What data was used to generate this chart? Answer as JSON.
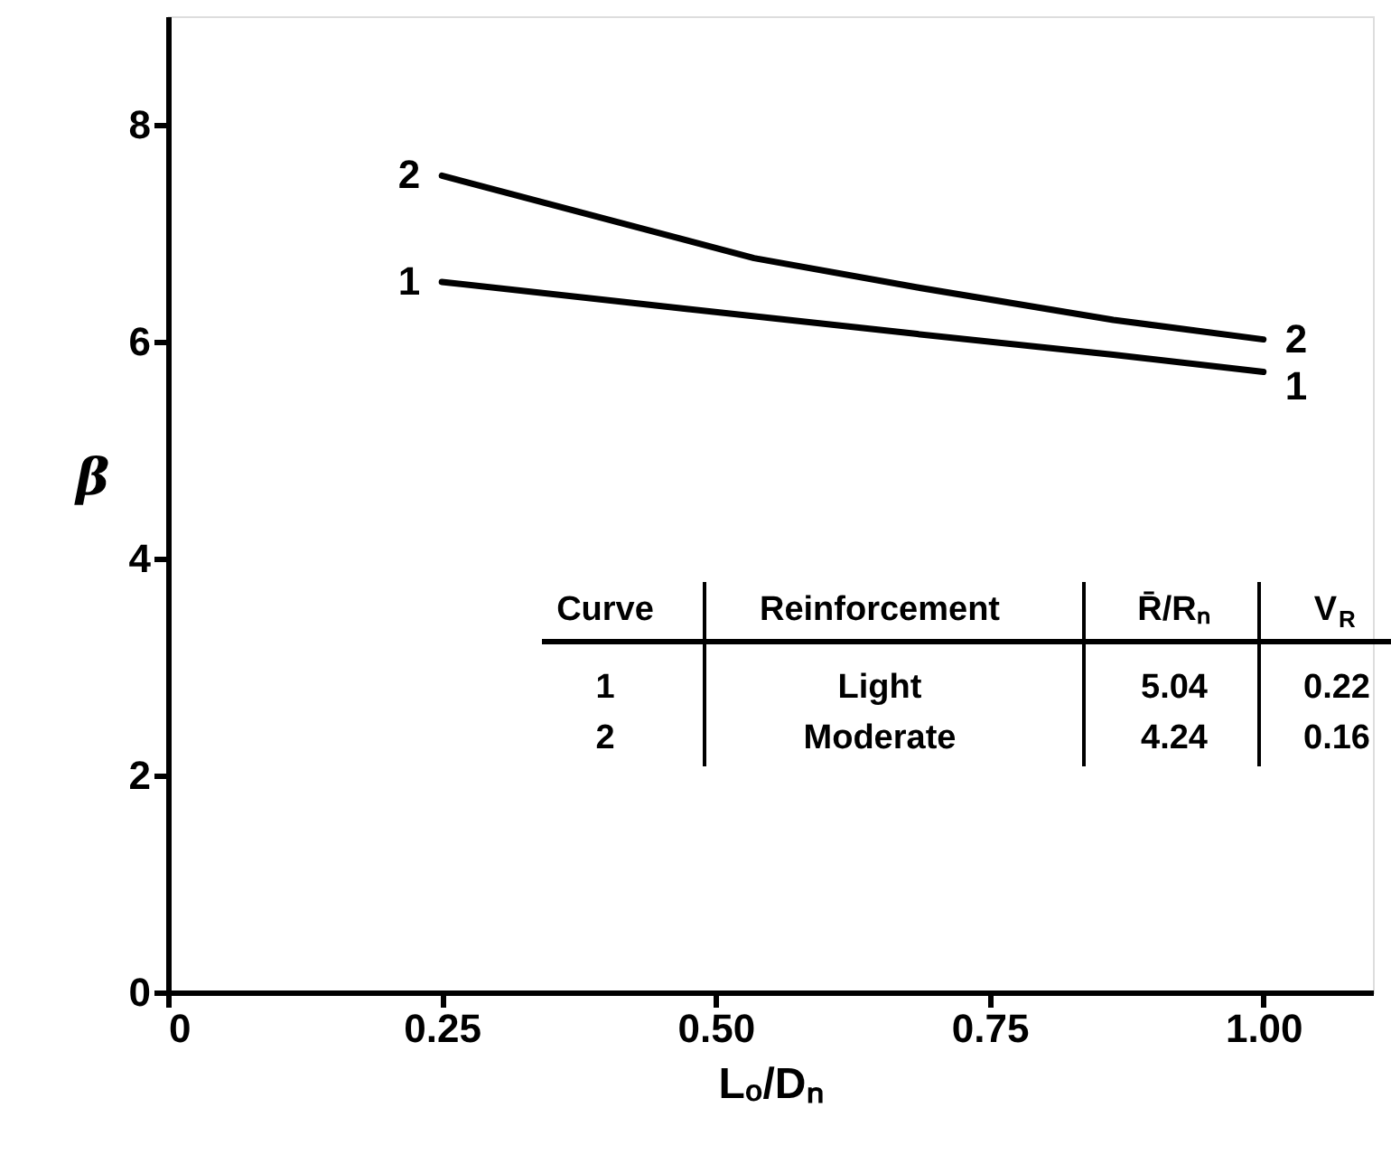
{
  "chart_data": {
    "type": "line",
    "xlabel": "Lₒ/Dₙ",
    "ylabel": "β",
    "xlim": [
      0,
      1.1
    ],
    "ylim": [
      0,
      9
    ],
    "xticks": [
      0,
      0.25,
      {
        "value": 0.5,
        "label": "0.50"
      },
      0.75,
      {
        "value": 1,
        "label": "1.00"
      }
    ],
    "yticks": [
      0,
      2,
      4,
      6,
      8
    ],
    "grid": false,
    "marker": "none",
    "line_style": "solid",
    "series": [
      {
        "name": "1",
        "color": "#000000",
        "x": [
          0.25,
          0.475,
          0.684,
          0.863,
          1.0
        ],
        "values": [
          6.55,
          6.3,
          6.07,
          5.88,
          5.72
        ]
      },
      {
        "name": "2",
        "color": "#000000",
        "x": [
          0.25,
          0.535,
          0.684,
          0.863,
          1.0
        ],
        "values": [
          7.53,
          6.77,
          6.5,
          6.2,
          6.02
        ]
      }
    ],
    "annotations": [
      "Curve",
      "Reinforcement",
      "R̄/Rₙ",
      "V$_{R}$",
      "1",
      "Light",
      "5.04",
      "0.22",
      "2",
      "Moderate",
      "4.24",
      "0.16"
    ]
  }
}
